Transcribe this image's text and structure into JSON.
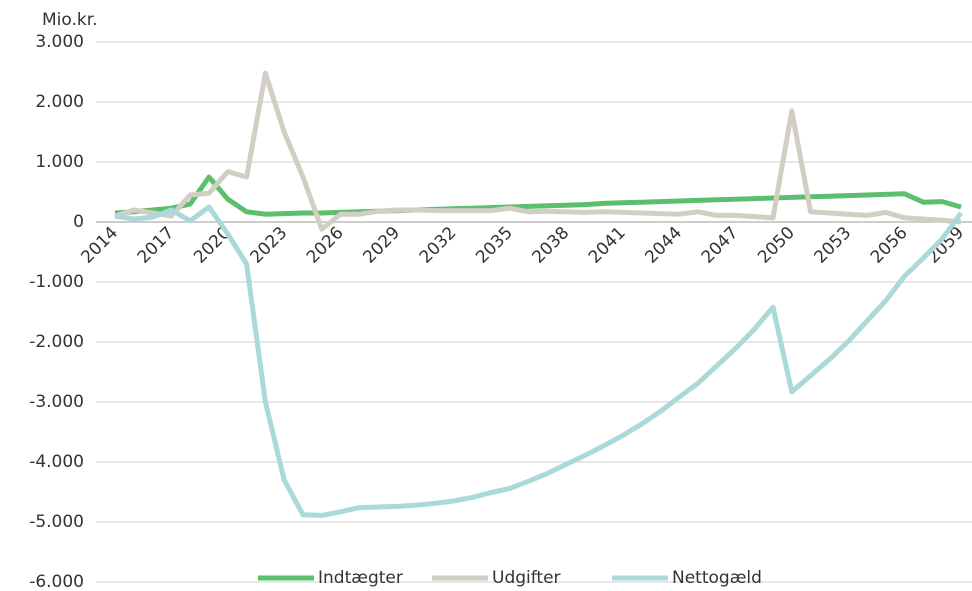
{
  "chart_data": {
    "type": "line",
    "y_axis_label": "Mio.kr.",
    "categories": [
      "2014",
      null,
      null,
      "2017",
      null,
      null,
      "2020",
      null,
      null,
      "2023",
      null,
      null,
      "2026",
      null,
      null,
      "2029",
      null,
      null,
      "2032",
      null,
      null,
      "2035",
      null,
      null,
      "2038",
      null,
      null,
      "2041",
      null,
      null,
      "2044",
      null,
      null,
      "2047",
      null,
      null,
      "2050",
      null,
      null,
      "2053",
      null,
      null,
      "2056",
      null,
      null,
      "2059"
    ],
    "series": [
      {
        "name": "Indtægter",
        "color": "#5bbf6e",
        "values": [
          150,
          170,
          200,
          230,
          300,
          750,
          380,
          170,
          130,
          140,
          150,
          150,
          160,
          170,
          180,
          190,
          200,
          210,
          220,
          230,
          240,
          250,
          260,
          270,
          280,
          290,
          310,
          320,
          330,
          340,
          350,
          360,
          370,
          380,
          390,
          400,
          410,
          420,
          430,
          440,
          450,
          460,
          470,
          330,
          340,
          250
        ]
      },
      {
        "name": "Udgifter",
        "color": "#d3cec4",
        "values": [
          100,
          200,
          150,
          100,
          450,
          480,
          840,
          750,
          2480,
          1500,
          750,
          -120,
          130,
          130,
          180,
          200,
          200,
          190,
          190,
          190,
          190,
          230,
          170,
          180,
          170,
          160,
          170,
          160,
          150,
          140,
          130,
          170,
          110,
          110,
          90,
          70,
          1850,
          170,
          150,
          130,
          110,
          160,
          70,
          50,
          30,
          0
        ]
      },
      {
        "name": "Nettogæld",
        "color": "#a9d9d9",
        "values": [
          100,
          50,
          80,
          200,
          20,
          250,
          -200,
          -700,
          -3000,
          -4300,
          -4880,
          -4890,
          -4830,
          -4760,
          -4750,
          -4740,
          -4720,
          -4690,
          -4650,
          -4590,
          -4510,
          -4440,
          -4320,
          -4190,
          -4040,
          -3890,
          -3730,
          -3560,
          -3370,
          -3160,
          -2920,
          -2690,
          -2400,
          -2110,
          -1790,
          -1420,
          -2830,
          -2560,
          -2290,
          -1990,
          -1650,
          -1310,
          -900,
          -600,
          -280,
          150
        ]
      }
    ],
    "ylim": [
      -6000,
      3000
    ],
    "yticks": [
      {
        "value": -6000,
        "label": "-6.000"
      },
      {
        "value": -5000,
        "label": "-5.000"
      },
      {
        "value": -4000,
        "label": "-4.000"
      },
      {
        "value": -3000,
        "label": "-3.000"
      },
      {
        "value": -2000,
        "label": "-2.000"
      },
      {
        "value": -1000,
        "label": "-1.000"
      },
      0,
      {
        "value": 1000,
        "label": "1.000"
      },
      {
        "value": 2000,
        "label": "2.000"
      },
      {
        "value": 3000,
        "label": "3.000"
      }
    ],
    "grid": true,
    "legend": "bottom"
  }
}
